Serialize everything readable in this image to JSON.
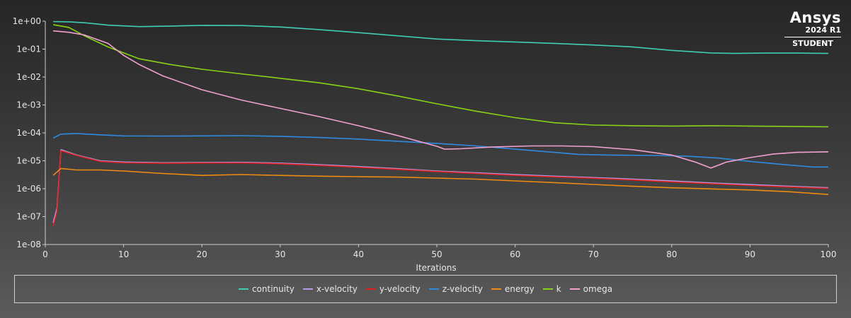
{
  "logo": {
    "brand": "Ansys",
    "version": "2024 R1",
    "edition": "STUDENT"
  },
  "chart_data": {
    "type": "line",
    "xlabel": "Iterations",
    "ylabel": "",
    "yscale": "log",
    "xlim": [
      0,
      100
    ],
    "ylim": [
      1e-08,
      1
    ],
    "x_ticks": [
      0,
      10,
      20,
      30,
      40,
      50,
      60,
      70,
      80,
      90,
      100
    ],
    "x_tick_labels": [
      "0",
      "10",
      "20",
      "30",
      "40",
      "50",
      "60",
      "70",
      "80",
      "90",
      "100"
    ],
    "y_ticks": [
      1,
      0.1,
      0.01,
      0.001,
      0.0001,
      1e-05,
      1e-06,
      1e-07,
      1e-08
    ],
    "y_tick_labels": [
      "1e+00",
      "1e-01",
      "1e-02",
      "1e-03",
      "1e-04",
      "1e-05",
      "1e-06",
      "1e-07",
      "1e-08"
    ],
    "grid": false,
    "legend_position": "bottom",
    "series": [
      {
        "name": "continuity",
        "color": "#3fcdb4",
        "points": [
          [
            1,
            0.97
          ],
          [
            3,
            0.95
          ],
          [
            5,
            0.88
          ],
          [
            8,
            0.72
          ],
          [
            12,
            0.64
          ],
          [
            16,
            0.67
          ],
          [
            20,
            0.71
          ],
          [
            25,
            0.7
          ],
          [
            30,
            0.62
          ],
          [
            35,
            0.5
          ],
          [
            40,
            0.39
          ],
          [
            45,
            0.3
          ],
          [
            50,
            0.23
          ],
          [
            55,
            0.2
          ],
          [
            60,
            0.18
          ],
          [
            65,
            0.16
          ],
          [
            70,
            0.14
          ],
          [
            75,
            0.12
          ],
          [
            80,
            0.09
          ],
          [
            85,
            0.073
          ],
          [
            88,
            0.07
          ],
          [
            92,
            0.072
          ],
          [
            96,
            0.072
          ],
          [
            100,
            0.07
          ]
        ]
      },
      {
        "name": "x-velocity",
        "color": "#b99ce8",
        "points": [
          [
            1,
            6e-08
          ],
          [
            1.5,
            2e-07
          ],
          [
            2,
            2.5e-05
          ],
          [
            4,
            1.6e-05
          ],
          [
            7,
            1e-05
          ],
          [
            10,
            9e-06
          ],
          [
            15,
            8.5e-06
          ],
          [
            20,
            8.7e-06
          ],
          [
            25,
            8.8e-06
          ],
          [
            30,
            8.2e-06
          ],
          [
            35,
            7.2e-06
          ],
          [
            40,
            6.2e-06
          ],
          [
            45,
            5.2e-06
          ],
          [
            50,
            4.3e-06
          ],
          [
            55,
            3.7e-06
          ],
          [
            60,
            3.2e-06
          ],
          [
            65,
            2.8e-06
          ],
          [
            70,
            2.5e-06
          ],
          [
            75,
            2.2e-06
          ],
          [
            80,
            1.9e-06
          ],
          [
            85,
            1.6e-06
          ],
          [
            90,
            1.4e-06
          ],
          [
            95,
            1.22e-06
          ],
          [
            100,
            1.08e-06
          ]
        ]
      },
      {
        "name": "y-velocity",
        "color": "#e02020",
        "points": [
          [
            1,
            4.5e-08
          ],
          [
            1.5,
            1.5e-07
          ],
          [
            2,
            2.3e-05
          ],
          [
            4,
            1.55e-05
          ],
          [
            7,
            9.5e-06
          ],
          [
            10,
            8.5e-06
          ],
          [
            15,
            8.1e-06
          ],
          [
            20,
            8.3e-06
          ],
          [
            25,
            8.4e-06
          ],
          [
            30,
            7.8e-06
          ],
          [
            35,
            6.8e-06
          ],
          [
            40,
            5.8e-06
          ],
          [
            45,
            4.9e-06
          ],
          [
            50,
            4.1e-06
          ],
          [
            55,
            3.5e-06
          ],
          [
            60,
            3e-06
          ],
          [
            65,
            2.65e-06
          ],
          [
            70,
            2.35e-06
          ],
          [
            75,
            2.05e-06
          ],
          [
            80,
            1.75e-06
          ],
          [
            85,
            1.5e-06
          ],
          [
            90,
            1.3e-06
          ],
          [
            95,
            1.15e-06
          ],
          [
            100,
            1.02e-06
          ]
        ]
      },
      {
        "name": "z-velocity",
        "color": "#2f8be0",
        "points": [
          [
            1,
            6.5e-05
          ],
          [
            2,
            9e-05
          ],
          [
            4,
            9.5e-05
          ],
          [
            7,
            8.5e-05
          ],
          [
            10,
            7.8e-05
          ],
          [
            15,
            7.7e-05
          ],
          [
            20,
            7.8e-05
          ],
          [
            25,
            7.9e-05
          ],
          [
            30,
            7.5e-05
          ],
          [
            35,
            6.8e-05
          ],
          [
            40,
            6e-05
          ],
          [
            45,
            5e-05
          ],
          [
            50,
            4.2e-05
          ],
          [
            55,
            3.4e-05
          ],
          [
            60,
            2.6e-05
          ],
          [
            65,
            2e-05
          ],
          [
            68,
            1.7e-05
          ],
          [
            72,
            1.6e-05
          ],
          [
            78,
            1.55e-05
          ],
          [
            82,
            1.45e-05
          ],
          [
            86,
            1.25e-05
          ],
          [
            90,
            9.5e-06
          ],
          [
            95,
            7e-06
          ],
          [
            98,
            6e-06
          ],
          [
            100,
            6e-06
          ]
        ]
      },
      {
        "name": "energy",
        "color": "#f08a10",
        "points": [
          [
            1,
            3e-06
          ],
          [
            2,
            5.3e-06
          ],
          [
            4,
            4.7e-06
          ],
          [
            7,
            4.7e-06
          ],
          [
            10,
            4.3e-06
          ],
          [
            15,
            3.5e-06
          ],
          [
            20,
            3e-06
          ],
          [
            25,
            3.2e-06
          ],
          [
            30,
            3e-06
          ],
          [
            35,
            2.8e-06
          ],
          [
            40,
            2.7e-06
          ],
          [
            45,
            2.6e-06
          ],
          [
            50,
            2.4e-06
          ],
          [
            55,
            2.2e-06
          ],
          [
            60,
            1.9e-06
          ],
          [
            65,
            1.65e-06
          ],
          [
            70,
            1.42e-06
          ],
          [
            75,
            1.22e-06
          ],
          [
            80,
            1.08e-06
          ],
          [
            85,
            9.8e-07
          ],
          [
            90,
            9e-07
          ],
          [
            95,
            7.8e-07
          ],
          [
            100,
            6.2e-07
          ]
        ]
      },
      {
        "name": "k",
        "color": "#86d415",
        "points": [
          [
            1,
            0.75
          ],
          [
            3,
            0.6
          ],
          [
            5,
            0.3
          ],
          [
            8,
            0.12
          ],
          [
            12,
            0.045
          ],
          [
            16,
            0.028
          ],
          [
            20,
            0.019
          ],
          [
            25,
            0.013
          ],
          [
            30,
            0.009
          ],
          [
            35,
            0.0062
          ],
          [
            40,
            0.0038
          ],
          [
            45,
            0.0021
          ],
          [
            50,
            0.0011
          ],
          [
            55,
            0.0006
          ],
          [
            60,
            0.00035
          ],
          [
            65,
            0.00023
          ],
          [
            70,
            0.00019
          ],
          [
            75,
            0.00018
          ],
          [
            80,
            0.000175
          ],
          [
            85,
            0.00018
          ],
          [
            90,
            0.000175
          ],
          [
            95,
            0.00017
          ],
          [
            100,
            0.000165
          ]
        ]
      },
      {
        "name": "omega",
        "color": "#f2a1cf",
        "points": [
          [
            1,
            0.45
          ],
          [
            3,
            0.4
          ],
          [
            5,
            0.32
          ],
          [
            8,
            0.16
          ],
          [
            10,
            0.06
          ],
          [
            12,
            0.028
          ],
          [
            15,
            0.011
          ],
          [
            20,
            0.0035
          ],
          [
            25,
            0.0015
          ],
          [
            30,
            0.00075
          ],
          [
            35,
            0.00038
          ],
          [
            40,
            0.00018
          ],
          [
            45,
            8e-05
          ],
          [
            50,
            3.3e-05
          ],
          [
            51,
            2.6e-05
          ],
          [
            53,
            2.7e-05
          ],
          [
            57,
            3.1e-05
          ],
          [
            62,
            3.4e-05
          ],
          [
            66,
            3.4e-05
          ],
          [
            70,
            3.2e-05
          ],
          [
            75,
            2.5e-05
          ],
          [
            80,
            1.6e-05
          ],
          [
            83,
            9e-06
          ],
          [
            85,
            5.5e-06
          ],
          [
            87,
            9e-06
          ],
          [
            90,
            1.3e-05
          ],
          [
            93,
            1.75e-05
          ],
          [
            96,
            2e-05
          ],
          [
            100,
            2.1e-05
          ]
        ]
      }
    ]
  }
}
